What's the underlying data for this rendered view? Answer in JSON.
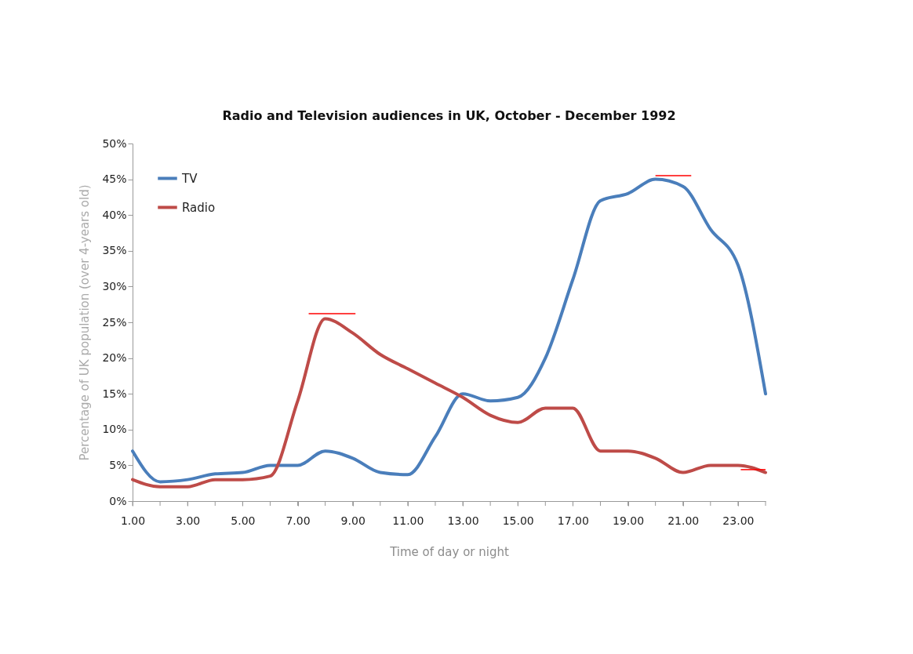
{
  "chart_data": {
    "type": "line",
    "title": "Radio and Television audiences in UK, October - December 1992",
    "xlabel": "Time of day or night",
    "ylabel": "Percentage of UK population  (over 4-years old)",
    "x": [
      1,
      2,
      3,
      4,
      5,
      6,
      7,
      8,
      9,
      10,
      11,
      12,
      13,
      14,
      15,
      16,
      17,
      18,
      19,
      20,
      21,
      22,
      23,
      24
    ],
    "series": [
      {
        "name": "TV",
        "color": "#4a7ebb",
        "values": [
          7,
          2.7,
          3,
          3.8,
          4,
          5,
          5,
          7,
          6,
          4,
          3.7,
          9,
          15,
          14,
          14.5,
          20,
          31,
          42,
          43,
          45,
          44,
          38,
          33,
          15
        ]
      },
      {
        "name": "Radio",
        "color": "#be4b48",
        "values": [
          3,
          2,
          2,
          3,
          3,
          3.5,
          14,
          25.5,
          23.5,
          20.5,
          18.5,
          16.5,
          14.5,
          12,
          11,
          13,
          13,
          7,
          7,
          6,
          4,
          5,
          5,
          4
        ]
      },
      {
        "color": "#ff0000",
        "x": [
          7.4,
          9.1
        ],
        "values": [
          26.2,
          26.2
        ]
      },
      {
        "color": "#ff0000",
        "x": [
          20,
          21.3
        ],
        "values": [
          45.5,
          45.5
        ]
      },
      {
        "color": "#ff0000",
        "x": [
          23.1,
          24
        ],
        "values": [
          4.4,
          4.4
        ]
      }
    ],
    "xlim": [
      1,
      24
    ],
    "xticks": [
      {
        "value": 1,
        "label": "1.00"
      },
      {
        "value": 2,
        "label": null
      },
      {
        "value": 3,
        "label": "3.00"
      },
      {
        "value": 4,
        "label": null
      },
      {
        "value": 5,
        "label": "5.00"
      },
      {
        "value": 6,
        "label": null
      },
      {
        "value": 7,
        "label": "7.00"
      },
      {
        "value": 8,
        "label": null
      },
      {
        "value": 9,
        "label": "9.00"
      },
      {
        "value": 10,
        "label": null
      },
      {
        "value": 11,
        "label": "11.00"
      },
      {
        "value": 12,
        "label": null
      },
      {
        "value": 13,
        "label": "13.00"
      },
      {
        "value": 14,
        "label": null
      },
      {
        "value": 15,
        "label": "15.00"
      },
      {
        "value": 16,
        "label": null
      },
      {
        "value": 17,
        "label": "17.00"
      },
      {
        "value": 18,
        "label": null
      },
      {
        "value": 19,
        "label": "19.00"
      },
      {
        "value": 20,
        "label": null
      },
      {
        "value": 21,
        "label": "21.00"
      },
      {
        "value": 22,
        "label": null
      },
      {
        "value": 23,
        "label": "23.00"
      },
      {
        "value": 24,
        "label": null
      }
    ],
    "ylim": [
      0,
      50
    ],
    "yticks": [
      {
        "value": 0,
        "label": "0%"
      },
      {
        "value": 5,
        "label": "5%"
      },
      {
        "value": 10,
        "label": "10%"
      },
      {
        "value": 15,
        "label": "15%"
      },
      {
        "value": 20,
        "label": "20%"
      },
      {
        "value": 25,
        "label": "25%"
      },
      {
        "value": 30,
        "label": "30%"
      },
      {
        "value": 35,
        "label": "35%"
      },
      {
        "value": 40,
        "label": "40%"
      },
      {
        "value": 45,
        "label": "45%"
      },
      {
        "value": 50,
        "label": "50%"
      }
    ],
    "grid": false,
    "legend": "top left",
    "marker": "none",
    "line_style": "solid"
  }
}
